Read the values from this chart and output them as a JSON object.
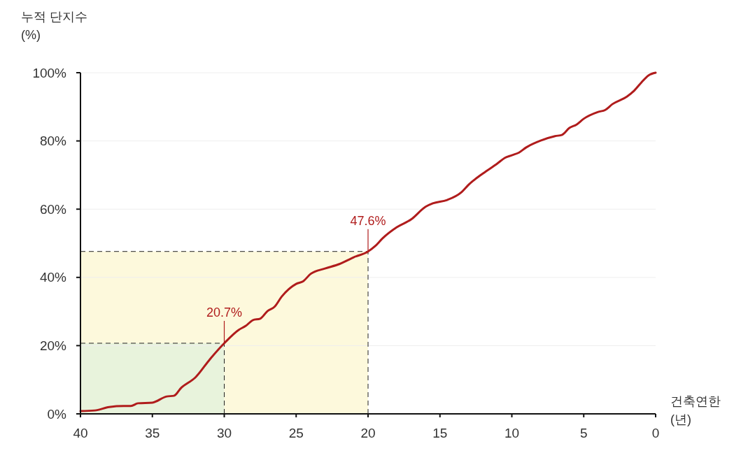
{
  "chart_data": {
    "type": "line",
    "ylabel": "누적 단지수\n(%)",
    "xlabel": "건축연한\n(년)",
    "x": [
      40,
      39,
      38,
      37,
      36.5,
      36,
      35,
      34,
      33.5,
      33,
      32,
      31,
      30,
      29,
      28.5,
      28,
      27.5,
      27,
      26.5,
      26,
      25,
      24.5,
      24,
      23,
      22,
      21,
      20,
      19.5,
      19,
      18,
      17,
      16,
      15.5,
      14.5,
      13.5,
      13,
      12,
      11,
      10.5,
      10,
      9.5,
      9,
      8,
      7,
      6.5,
      6,
      5.5,
      5,
      4,
      3.5,
      3,
      2,
      1.5,
      1,
      0.5,
      0
    ],
    "series": [
      {
        "color": "#b01c1c",
        "values": [
          0.8,
          1,
          2,
          2.3,
          2.3,
          3.1,
          3.3,
          5.1,
          5.3,
          7.6,
          10.7,
          16,
          20.7,
          24.6,
          25.8,
          27.5,
          27.9,
          30.1,
          31.4,
          34.4,
          38.1,
          38.9,
          41,
          42.6,
          43.9,
          45.9,
          47.6,
          49.2,
          51.4,
          54.7,
          57,
          60.7,
          61.7,
          62.7,
          65,
          67.2,
          70.5,
          73.4,
          75,
          75.8,
          76.6,
          78.1,
          80.1,
          81.4,
          81.8,
          83.8,
          84.8,
          86.5,
          88.5,
          89.1,
          90.8,
          93,
          94.7,
          97.1,
          99.2,
          100
        ]
      }
    ],
    "xlim": [
      40,
      0
    ],
    "xticks": [
      40,
      35,
      30,
      25,
      20,
      15,
      10,
      5,
      0
    ],
    "ylim": [
      0,
      100
    ],
    "yticks": [
      {
        "value": 0,
        "label": "0%"
      },
      {
        "value": 20,
        "label": "20%"
      },
      {
        "value": 40,
        "label": "40%"
      },
      {
        "value": 60,
        "label": "60%"
      },
      {
        "value": 80,
        "label": "80%"
      },
      {
        "value": 100,
        "label": "100%"
      }
    ],
    "grid": "y",
    "line_style": "solid",
    "marker": "none",
    "ref_lines": [
      {
        "axis": "x",
        "value": 30,
        "line_style": "dashed",
        "color": "#222222"
      },
      {
        "axis": "x",
        "value": 20,
        "line_style": "dashed",
        "color": "#222222"
      },
      {
        "axis": "y",
        "value": 20.7,
        "line_style": "dashed",
        "color": "#222222"
      },
      {
        "axis": "y",
        "value": 47.6,
        "line_style": "dashed",
        "color": "#222222"
      }
    ],
    "bands": [
      {
        "axis": "x",
        "from": 40,
        "to": 20,
        "color": "#fdf9dc"
      },
      {
        "axis": "x",
        "from": 40,
        "to": 30,
        "color": "#e8f3dc"
      }
    ],
    "annotations": [
      {
        "text": "20.7%",
        "x": 30,
        "y": 20.7
      },
      {
        "text": "47.6%",
        "x": 20,
        "y": 47.6
      }
    ]
  }
}
